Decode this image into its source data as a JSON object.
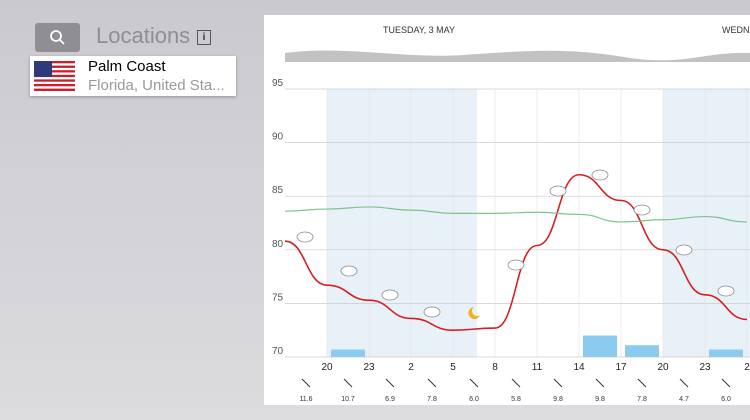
{
  "sidebar": {
    "title": "Locations",
    "location": {
      "name": "Palm Coast",
      "region": "Florida, United Sta..."
    }
  },
  "chart_data": {
    "type": "line",
    "day_labels": [
      "TUESDAY, 3 MAY",
      "WEDNE"
    ],
    "categories": [
      null,
      "20",
      "23",
      "2",
      "5",
      "8",
      "11",
      "14",
      "17",
      "20",
      "23",
      "2"
    ],
    "series": [
      {
        "color": "#d42020",
        "values": [
          80.8,
          76.7,
          75.3,
          73.6,
          72.5,
          72.7,
          80.4,
          87.0,
          84.6,
          80.0,
          75.8,
          73.5
        ]
      },
      {
        "color": "#7cc48a",
        "values": [
          83.6,
          83.8,
          84.0,
          83.7,
          83.4,
          83.4,
          83.5,
          83.3,
          82.6,
          82.8,
          83.1,
          82.6
        ]
      }
    ],
    "bars": {
      "color": "#8ccbf0",
      "values": [
        null,
        70.7,
        null,
        null,
        null,
        null,
        null,
        72.0,
        71.1,
        null,
        70.7,
        null
      ]
    },
    "wind": [
      "11.6",
      "10.7",
      "6.9",
      "7.8",
      "6.0",
      "5.8",
      "9.8",
      "9.8",
      "7.8",
      "4.7",
      "6.0"
    ],
    "ylim": [
      70,
      95
    ],
    "yticks": [
      70,
      75,
      80,
      85,
      90,
      95
    ],
    "grid": true
  }
}
